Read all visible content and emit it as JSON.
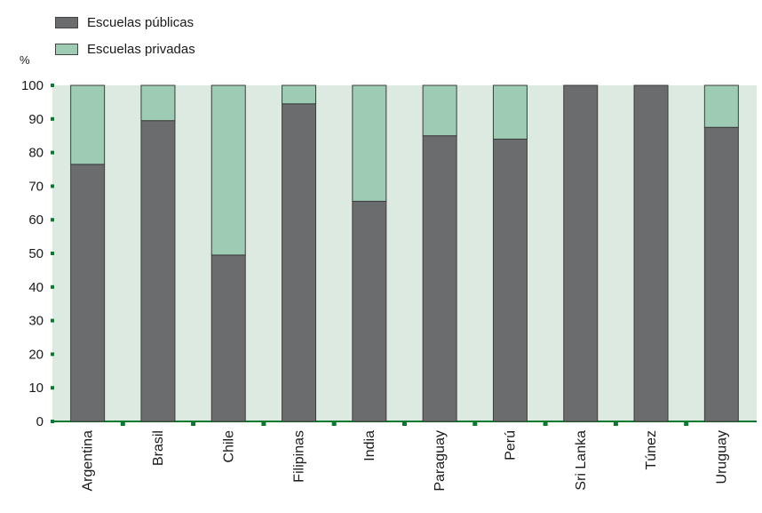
{
  "colors": {
    "plot_bg": "#dceae2",
    "public": "#6b6c6e",
    "private": "#9dcbb4",
    "tick": "#0a7a2f",
    "bar_stroke": "#3d3d3d"
  },
  "chart_data": {
    "type": "bar",
    "stacked": true,
    "title": "",
    "xlabel": "",
    "ylabel": "%",
    "ylim": [
      0,
      100
    ],
    "yticks": [
      0,
      10,
      20,
      30,
      40,
      50,
      60,
      70,
      80,
      90,
      100
    ],
    "legend_position": "top-left",
    "categories": [
      "Argentina",
      "Brasil",
      "Chile",
      "Filipinas",
      "India",
      "Paraguay",
      "Perú",
      "Sri Lanka",
      "Túnez",
      "Uruguay"
    ],
    "series": [
      {
        "name": "Escuelas públicas",
        "values": [
          76.5,
          89.5,
          49.5,
          94.5,
          65.5,
          85,
          84,
          100,
          100,
          87.5
        ]
      },
      {
        "name": "Escuelas privadas",
        "values": [
          23.5,
          10.5,
          50.5,
          5.5,
          34.5,
          15,
          16,
          0,
          0,
          12.5
        ]
      }
    ]
  }
}
